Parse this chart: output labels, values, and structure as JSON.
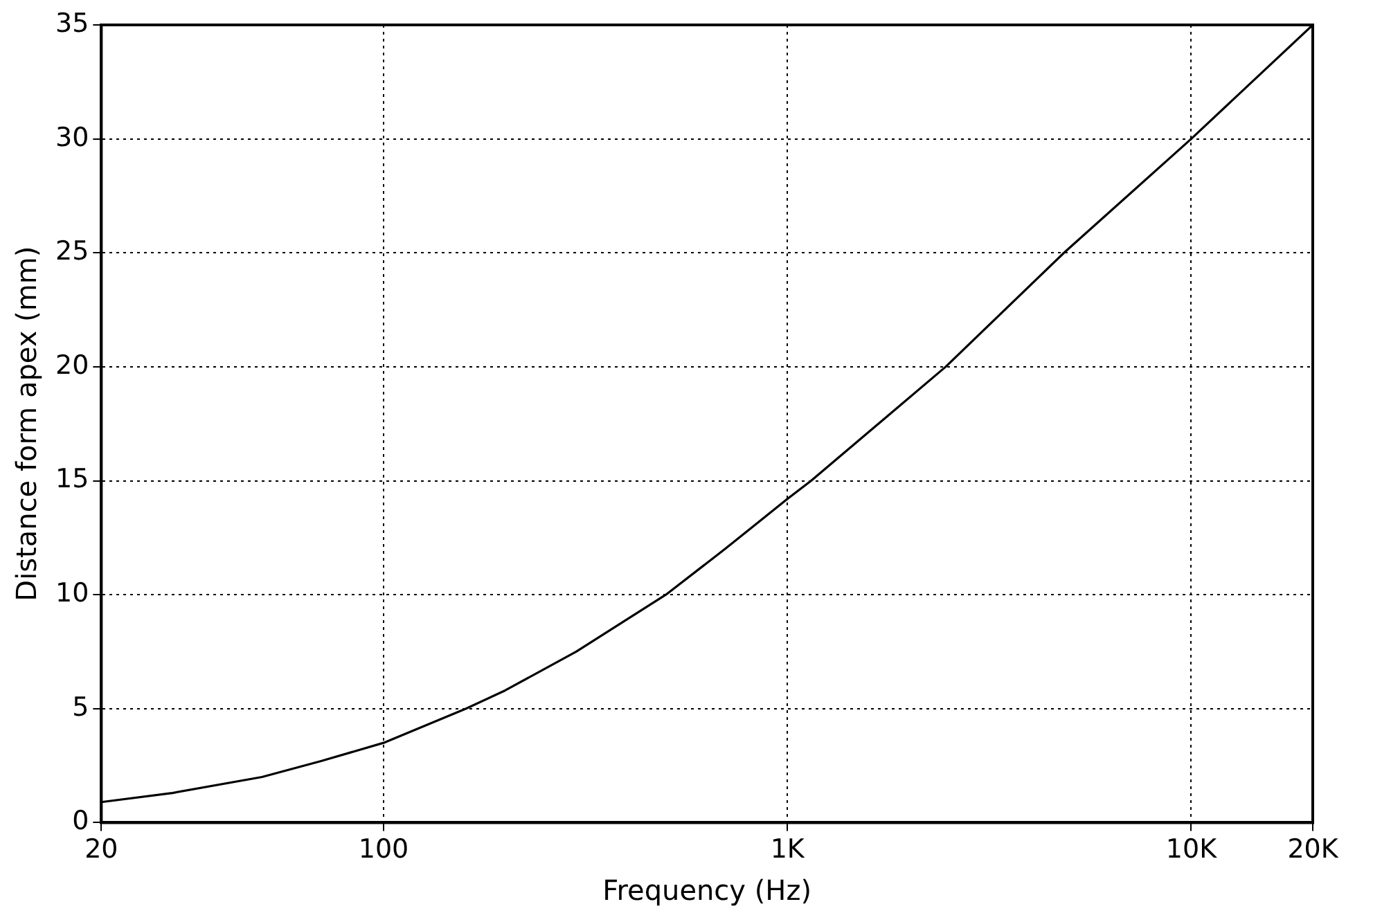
{
  "chart_data": {
    "type": "line",
    "xlabel": "Frequency (Hz)",
    "ylabel": "Distance form apex (mm)",
    "x": [
      20,
      30,
      50,
      70,
      100,
      160,
      200,
      300,
      500,
      700,
      1000,
      1145,
      2466,
      4840,
      10000,
      20000
    ],
    "series": [
      {
        "color": "#000000",
        "values": [
          0.9,
          1.3,
          2.0,
          2.7,
          3.5,
          5.0,
          5.8,
          7.5,
          10.0,
          12.0,
          14.2,
          15.0,
          20.0,
          25.0,
          30.0,
          35.0
        ]
      }
    ],
    "log": "x",
    "xlim": [
      20,
      20000
    ],
    "xticks": [
      20,
      100,
      {
        "value": 1000,
        "label": "1K"
      },
      {
        "value": 10000,
        "label": "10K"
      },
      {
        "value": 20000,
        "label": "20K"
      }
    ],
    "ylim": [
      0,
      35
    ],
    "yticks": [
      0,
      5,
      10,
      15,
      20,
      25,
      30,
      35
    ],
    "grid": true,
    "marker": "none",
    "line_style": "solid",
    "legend": false
  }
}
